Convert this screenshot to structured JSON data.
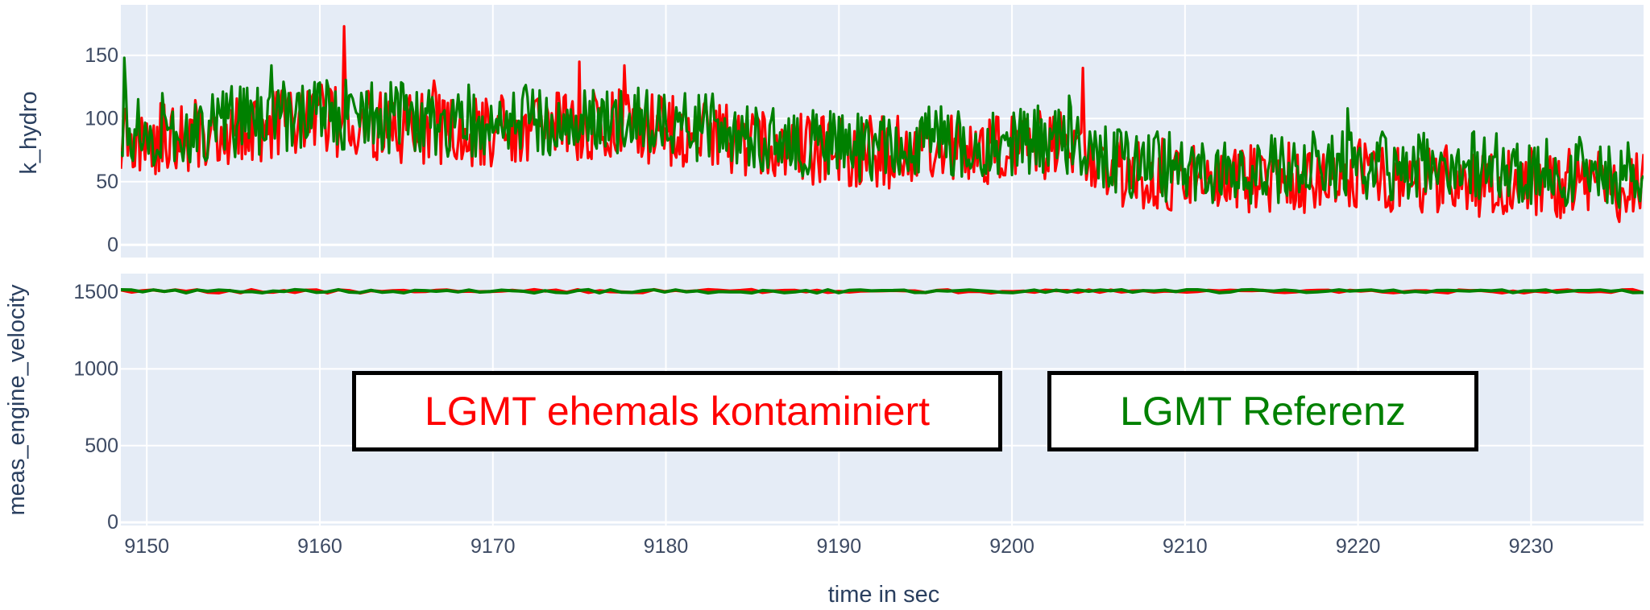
{
  "chart_data": [
    {
      "type": "line",
      "ylabel": "k_hydro",
      "xlabel": "",
      "xlim": [
        9148.5,
        9236.5
      ],
      "ylim": [
        -10,
        190
      ],
      "yticks": [
        0,
        50,
        100,
        150
      ],
      "xticks": [
        9150,
        9160,
        9170,
        9180,
        9190,
        9200,
        9210,
        9220,
        9230
      ],
      "grid": true,
      "series": [
        {
          "name": "LGMT ehemals kontaminiert",
          "color": "#ff0000",
          "anchors": {
            "x": [
              9148.5,
              9150,
              9155,
              9160,
              9165,
              9170,
              9175,
              9180,
              9185,
              9190,
              9195,
              9200,
              9204,
              9206,
              9210,
              9215,
              9220,
              9225,
              9230,
              9236.5
            ],
            "y": [
              85,
              82,
              92,
              98,
              93,
              90,
              96,
              92,
              80,
              72,
              75,
              78,
              75,
              58,
              55,
              52,
              55,
              50,
              48,
              47
            ]
          },
          "spikes": [
            [
              9161.4,
              173
            ],
            [
              9175.0,
              145
            ],
            [
              9177.6,
              142
            ],
            [
              9204.1,
              140
            ],
            [
              9166.6,
              130
            ]
          ]
        },
        {
          "name": "LGMT Referenz",
          "color": "#008000",
          "anchors": {
            "x": [
              9148.5,
              9150,
              9155,
              9160,
              9165,
              9170,
              9175,
              9180,
              9185,
              9190,
              9195,
              9200,
              9204,
              9206,
              9210,
              9215,
              9220,
              9225,
              9230,
              9236.5
            ],
            "y": [
              95,
              90,
              98,
              104,
              100,
              97,
              101,
              98,
              86,
              78,
              82,
              84,
              80,
              64,
              62,
              60,
              64,
              62,
              60,
              55
            ]
          },
          "spikes": [
            [
              9148.7,
              148
            ],
            [
              9157.2,
              142
            ],
            [
              9219.4,
              108
            ],
            [
              9203.3,
              118
            ]
          ]
        }
      ]
    },
    {
      "type": "line",
      "ylabel": "meas_engine_velocity",
      "xlabel": "time in sec",
      "xlim": [
        9148.5,
        9236.5
      ],
      "ylim": [
        -20,
        1620
      ],
      "yticks": [
        0,
        500,
        1000,
        1500
      ],
      "xticks": [
        9150,
        9160,
        9170,
        9180,
        9190,
        9200,
        9210,
        9220,
        9230
      ],
      "grid": true,
      "series": [
        {
          "name": "LGMT ehemals kontaminiert",
          "color": "#ff0000",
          "base": 1505,
          "amplitude": 22
        },
        {
          "name": "LGMT Referenz",
          "color": "#008000",
          "base": 1505,
          "amplitude": 22
        }
      ]
    }
  ],
  "legend": {
    "items": [
      {
        "label": "LGMT ehemals kontaminiert",
        "color": "#ff0000"
      },
      {
        "label": "LGMT Referenz",
        "color": "#008000"
      }
    ]
  },
  "colors": {
    "plot_bg": "#e5ecf6",
    "grid": "#ffffff"
  }
}
